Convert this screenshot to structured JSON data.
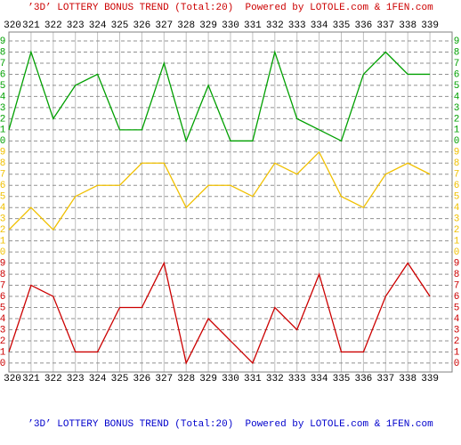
{
  "chart_data": {
    "type": "line",
    "title": "’3D’ LOTTERY BONUS TREND (Total:20)  Powered by LOTOLE.com & 1FEN.com",
    "footer": "’3D’ LOTTERY BONUS TREND (Total:20)  Powered by LOTOLE.com & 1FEN.com",
    "categories": [
      "320",
      "321",
      "322",
      "323",
      "324",
      "325",
      "326",
      "327",
      "328",
      "329",
      "330",
      "331",
      "332",
      "333",
      "334",
      "335",
      "336",
      "337",
      "338",
      "339"
    ],
    "ylim": [
      0,
      9
    ],
    "yticks": [
      0,
      1,
      2,
      3,
      4,
      5,
      6,
      7,
      8,
      9
    ],
    "grid": true,
    "series": [
      {
        "color": "#00a000",
        "values": [
          1,
          8,
          2,
          5,
          6,
          1,
          1,
          7,
          0,
          5,
          0,
          0,
          8,
          2,
          1,
          0,
          6,
          8,
          6,
          6
        ]
      },
      {
        "color": "#f0c000",
        "values": [
          2,
          4,
          2,
          5,
          6,
          6,
          8,
          8,
          4,
          6,
          6,
          5,
          8,
          7,
          9,
          5,
          4,
          7,
          8,
          7
        ]
      },
      {
        "color": "#cc0000",
        "values": [
          1,
          7,
          6,
          1,
          1,
          5,
          5,
          9,
          0,
          4,
          2,
          0,
          5,
          3,
          8,
          1,
          1,
          6,
          9,
          6
        ]
      }
    ]
  }
}
